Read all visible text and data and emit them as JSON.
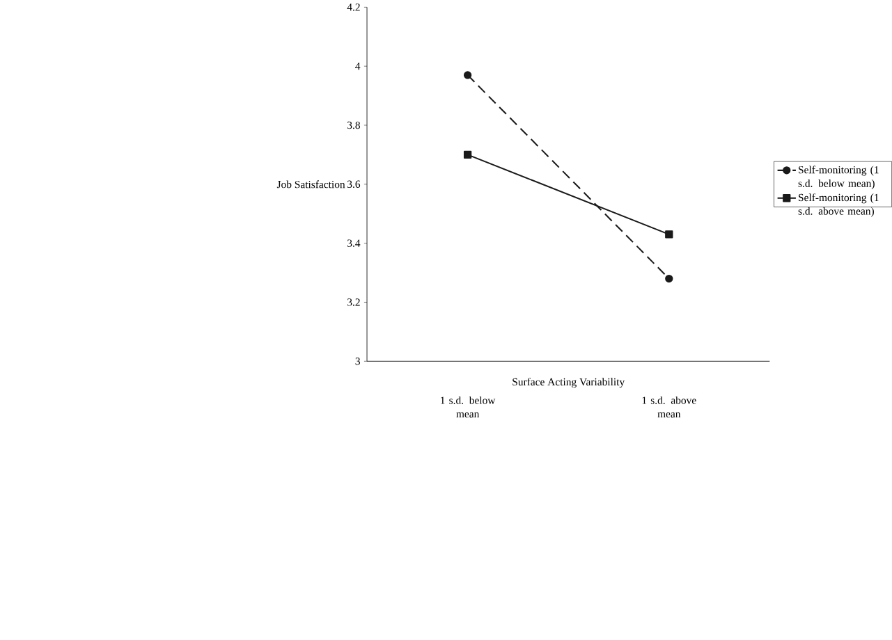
{
  "chart_data": {
    "type": "line",
    "xlabel": "Surface Acting Variability",
    "ylabel": "Job Satisfaction",
    "categories": [
      "1 s.d. below mean",
      "1 s.d. above mean"
    ],
    "series": [
      {
        "name": "Self-monitoring (1 s.d. below mean)",
        "color": "#1a1a1a",
        "values": [
          3.97,
          3.28
        ],
        "marker": "circle",
        "line_style": "dashed"
      },
      {
        "name": "Self-monitoring (1 s.d. above mean)",
        "color": "#1a1a1a",
        "values": [
          3.7,
          3.43
        ],
        "marker": "square",
        "line_style": "solid"
      }
    ],
    "ylim": [
      3,
      4.2
    ],
    "yticks": [
      3,
      3.2,
      3.4,
      3.6,
      3.8,
      4,
      4.2
    ],
    "grid": false,
    "legend": "right"
  }
}
